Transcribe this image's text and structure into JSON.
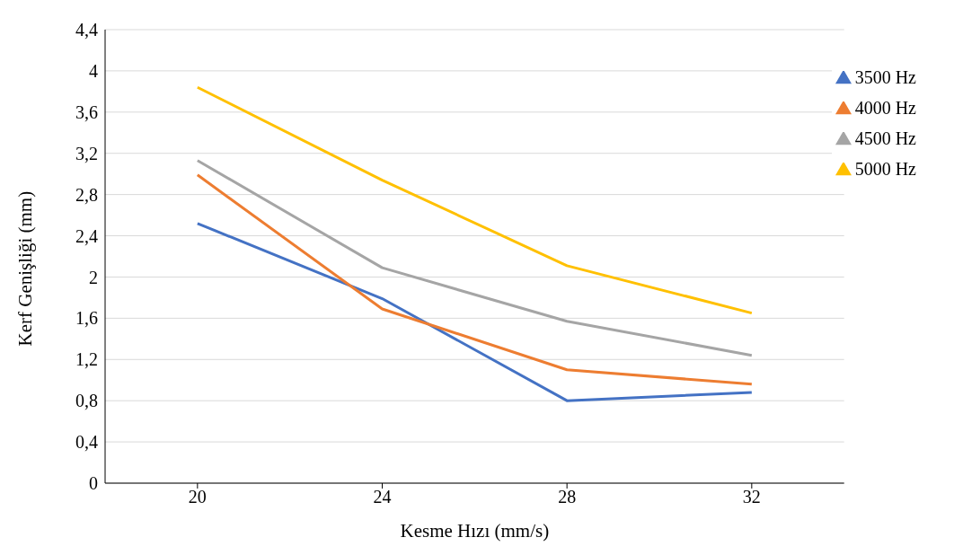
{
  "chart_data": {
    "type": "line",
    "xlabel": "Kesme Hızı (mm/s)",
    "ylabel": "Kerf Genişliği (mm)",
    "x": [
      20,
      24,
      28,
      32
    ],
    "series": [
      {
        "name": "3500 Hz",
        "color": "#4472c4",
        "values": [
          2.52,
          1.79,
          0.8,
          0.88
        ]
      },
      {
        "name": "4000 Hz",
        "color": "#ed7d31",
        "values": [
          2.99,
          1.69,
          1.1,
          0.96
        ]
      },
      {
        "name": "4500 Hz",
        "color": "#a5a5a5",
        "values": [
          3.13,
          2.09,
          1.57,
          1.24
        ]
      },
      {
        "name": "5000 Hz",
        "color": "#ffc000",
        "values": [
          3.84,
          2.94,
          2.11,
          1.65
        ]
      }
    ],
    "xlim": [
      18,
      34
    ],
    "xticks": [
      20,
      24,
      28,
      32
    ],
    "ylim": [
      0,
      4.4
    ],
    "yticks": [
      0,
      {
        "value": 0.4,
        "label": "0,4"
      },
      {
        "value": 0.8,
        "label": "0,8"
      },
      {
        "value": 1.2,
        "label": "1,2"
      },
      {
        "value": 1.6,
        "label": "1,6"
      },
      2,
      {
        "value": 2.4,
        "label": "2,4"
      },
      {
        "value": 2.8,
        "label": "2,8"
      },
      {
        "value": 3.2,
        "label": "3,2"
      },
      {
        "value": 3.6,
        "label": "3,6"
      },
      4,
      {
        "value": 4.4,
        "label": "4,4"
      }
    ],
    "grid": "y",
    "legend": "top right"
  }
}
